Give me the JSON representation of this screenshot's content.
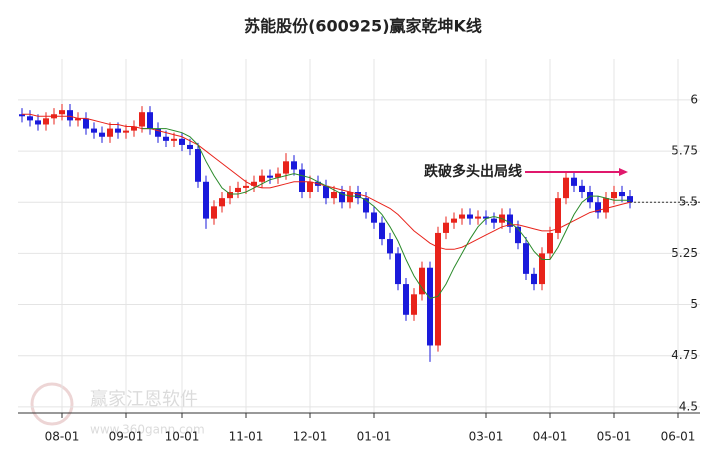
{
  "chart_data": {
    "type": "candlestick",
    "title": "苏能股份(600925)赢家乾坤K线",
    "annotation": "跌破多头出局线",
    "watermark": {
      "brand": "赢家江恩软件",
      "url": "www.360gann.com"
    },
    "categories": [
      null,
      null,
      null,
      null,
      null,
      "08-01",
      null,
      null,
      null,
      null,
      null,
      null,
      null,
      "09-01",
      null,
      null,
      null,
      null,
      null,
      null,
      "10-01",
      null,
      null,
      null,
      null,
      null,
      null,
      null,
      "11-01",
      null,
      null,
      null,
      null,
      null,
      null,
      null,
      "12-01",
      null,
      null,
      null,
      null,
      null,
      null,
      null,
      "01-01",
      null,
      null,
      null,
      null,
      null,
      null,
      null,
      null,
      null,
      null,
      null,
      null,
      null,
      "03-01",
      null,
      null,
      null,
      null,
      null,
      null,
      null,
      "04-01",
      null,
      null,
      null,
      null,
      null,
      null,
      null,
      "05-01",
      null,
      null,
      null,
      null,
      null,
      null,
      null,
      "06-01"
    ],
    "open": [
      5.93,
      5.92,
      5.9,
      5.88,
      5.91,
      5.93,
      5.95,
      5.9,
      5.91,
      5.86,
      5.84,
      5.82,
      5.86,
      5.84,
      5.85,
      5.87,
      5.94,
      5.86,
      5.82,
      5.8,
      5.81,
      5.78,
      5.76,
      5.6,
      5.42,
      5.48,
      5.52,
      5.55,
      5.57,
      5.58,
      5.6,
      5.63,
      5.62,
      5.64,
      5.7,
      5.66,
      5.55,
      5.6,
      5.58,
      5.52,
      5.55,
      5.5,
      5.55,
      5.52,
      5.45,
      5.4,
      5.32,
      5.25,
      5.1,
      4.95,
      5.05,
      5.18,
      4.8,
      5.35,
      5.4,
      5.42,
      5.44,
      5.42,
      5.43,
      5.42,
      5.4,
      5.44,
      5.38,
      5.3,
      5.15,
      5.1,
      5.25,
      5.35,
      5.52,
      5.62,
      5.58,
      5.55,
      5.5,
      5.45,
      5.52,
      5.55,
      5.53,
      null,
      null,
      null,
      null,
      null,
      null
    ],
    "high": [
      5.96,
      5.95,
      5.93,
      5.94,
      5.96,
      5.98,
      5.98,
      5.94,
      5.94,
      5.89,
      5.87,
      5.89,
      5.89,
      5.88,
      5.9,
      5.97,
      5.97,
      5.89,
      5.85,
      5.84,
      5.84,
      5.81,
      5.79,
      5.63,
      5.51,
      5.55,
      5.58,
      5.6,
      5.61,
      5.63,
      5.66,
      5.66,
      5.67,
      5.74,
      5.73,
      5.69,
      5.63,
      5.63,
      5.61,
      5.58,
      5.58,
      5.58,
      5.58,
      5.55,
      5.48,
      5.43,
      5.35,
      5.28,
      5.13,
      5.08,
      5.21,
      5.21,
      5.38,
      5.43,
      5.45,
      5.47,
      5.47,
      5.46,
      5.46,
      5.45,
      5.47,
      5.47,
      5.41,
      5.33,
      5.18,
      5.28,
      5.38,
      5.55,
      5.65,
      5.65,
      5.61,
      5.58,
      5.53,
      5.55,
      5.58,
      5.58,
      5.56,
      null,
      null,
      null,
      null,
      null,
      null
    ],
    "low": [
      5.89,
      5.87,
      5.85,
      5.85,
      5.88,
      5.9,
      5.87,
      5.87,
      5.83,
      5.81,
      5.79,
      5.79,
      5.81,
      5.81,
      5.82,
      5.84,
      5.83,
      5.79,
      5.77,
      5.77,
      5.75,
      5.73,
      5.57,
      5.37,
      5.39,
      5.45,
      5.49,
      5.52,
      5.54,
      5.55,
      5.57,
      5.59,
      5.59,
      5.61,
      5.63,
      5.52,
      5.52,
      5.55,
      5.49,
      5.49,
      5.47,
      5.47,
      5.49,
      5.42,
      5.37,
      5.29,
      5.22,
      5.07,
      4.92,
      4.92,
      5.02,
      4.72,
      4.77,
      5.32,
      5.37,
      5.39,
      5.39,
      5.39,
      5.39,
      5.37,
      5.37,
      5.35,
      5.27,
      5.12,
      5.07,
      5.07,
      5.22,
      5.32,
      5.49,
      5.55,
      5.52,
      5.47,
      5.42,
      5.42,
      5.49,
      5.5,
      5.47,
      null,
      null,
      null,
      null,
      null,
      null
    ],
    "close": [
      5.92,
      5.9,
      5.88,
      5.91,
      5.93,
      5.95,
      5.9,
      5.91,
      5.86,
      5.84,
      5.82,
      5.86,
      5.84,
      5.85,
      5.87,
      5.94,
      5.86,
      5.82,
      5.8,
      5.81,
      5.78,
      5.76,
      5.6,
      5.42,
      5.48,
      5.52,
      5.55,
      5.57,
      5.58,
      5.6,
      5.63,
      5.62,
      5.64,
      5.7,
      5.66,
      5.55,
      5.6,
      5.58,
      5.52,
      5.55,
      5.5,
      5.55,
      5.52,
      5.45,
      5.4,
      5.32,
      5.25,
      5.1,
      4.95,
      5.05,
      5.18,
      4.8,
      5.35,
      5.4,
      5.42,
      5.44,
      5.42,
      5.43,
      5.42,
      5.4,
      5.44,
      5.38,
      5.3,
      5.15,
      5.1,
      5.25,
      5.35,
      5.52,
      5.62,
      5.58,
      5.55,
      5.5,
      5.45,
      5.52,
      5.55,
      5.53,
      5.5,
      null,
      null,
      null,
      null,
      null,
      null
    ],
    "up_color": "#e8231b",
    "down_color": "#1a1adb",
    "lines": [
      {
        "color": "#e8231b",
        "values": [
          5.93,
          5.93,
          5.92,
          5.92,
          5.92,
          5.92,
          5.92,
          5.91,
          5.91,
          5.9,
          5.89,
          5.88,
          5.88,
          5.87,
          5.87,
          5.86,
          5.86,
          5.85,
          5.84,
          5.83,
          5.82,
          5.8,
          5.78,
          5.75,
          5.72,
          5.69,
          5.66,
          5.63,
          5.6,
          5.58,
          5.57,
          5.57,
          5.58,
          5.59,
          5.6,
          5.6,
          5.6,
          5.59,
          5.58,
          5.57,
          5.56,
          5.55,
          5.54,
          5.53,
          5.51,
          5.49,
          5.47,
          5.44,
          5.4,
          5.36,
          5.33,
          5.3,
          5.28,
          5.27,
          5.27,
          5.28,
          5.3,
          5.32,
          5.34,
          5.36,
          5.38,
          5.39,
          5.39,
          5.38,
          5.37,
          5.36,
          5.36,
          5.37,
          5.39,
          5.41,
          5.43,
          5.45,
          5.46,
          5.47,
          5.48,
          5.49,
          5.5,
          null,
          null,
          null,
          null,
          null,
          null
        ]
      },
      {
        "color": "#2a8a2a",
        "values": [
          null,
          null,
          null,
          null,
          null,
          null,
          null,
          null,
          null,
          null,
          null,
          null,
          null,
          null,
          null,
          5.86,
          5.86,
          5.86,
          5.86,
          5.85,
          5.84,
          5.82,
          5.78,
          5.7,
          5.63,
          5.57,
          5.54,
          5.54,
          5.55,
          5.57,
          5.59,
          5.61,
          5.62,
          5.63,
          5.64,
          5.63,
          5.62,
          5.6,
          5.58,
          5.56,
          5.54,
          5.53,
          5.53,
          5.51,
          5.48,
          5.44,
          5.38,
          5.31,
          5.22,
          5.14,
          5.08,
          5.03,
          5.04,
          5.1,
          5.18,
          5.25,
          5.32,
          5.38,
          5.42,
          5.43,
          5.42,
          5.4,
          5.37,
          5.32,
          5.26,
          5.22,
          5.22,
          5.28,
          5.36,
          5.44,
          5.5,
          5.53,
          5.53,
          5.52,
          5.51,
          5.51,
          5.51,
          null,
          null,
          null,
          null,
          null,
          null
        ]
      }
    ],
    "ylim": [
      4.47,
      6.2
    ],
    "yticks": [
      6,
      5.75,
      5.5,
      5.25,
      5,
      4.75,
      4.5
    ],
    "grid": true
  }
}
